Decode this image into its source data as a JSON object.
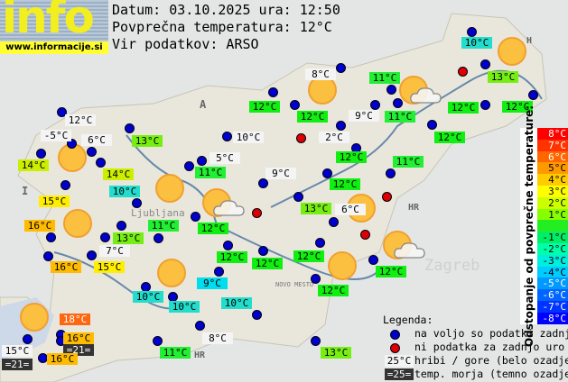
{
  "header": {
    "site_logo_text": "info",
    "site_url": "www.informacije.si",
    "date_line": "Datum: 03.10.2025 ura: 12:50",
    "avg_temp_line": "Povprečna temperatura: 12°C",
    "source_line": "Vir podatkov: ARSO"
  },
  "colors": {
    "station_dot": "#0000cc",
    "no_data_dot": "#dd0000",
    "mountain_bg": "#f4f4f4",
    "sea_bg": "#333333",
    "t9": "#00ddee",
    "t10": "#22ddcc",
    "t11": "#22ee33",
    "t12": "#11ee11",
    "t13": "#77ee11",
    "t14": "#ccee00",
    "t15": "#ffee00",
    "t16": "#ffbb00",
    "t18": "#ff6611"
  },
  "labels": [
    {
      "text": "12°C",
      "type": "mountain"
    },
    {
      "text": "-5°C",
      "type": "mountain"
    },
    {
      "text": "6°C",
      "type": "mountain"
    },
    {
      "text": "14°C",
      "type": "t14"
    },
    {
      "text": "14°C",
      "type": "t14"
    },
    {
      "text": "13°C",
      "type": "t13"
    },
    {
      "text": "15°C",
      "type": "t15"
    },
    {
      "text": "10°C",
      "type": "t10"
    },
    {
      "text": "12°C",
      "type": "t12"
    },
    {
      "text": "10°C",
      "type": "mountain"
    },
    {
      "text": "5°C",
      "type": "mountain"
    },
    {
      "text": "11°C",
      "type": "t11"
    },
    {
      "text": "9°C",
      "type": "mountain"
    },
    {
      "text": "16°C",
      "type": "t16"
    },
    {
      "text": "13°C",
      "type": "t13"
    },
    {
      "text": "11°C",
      "type": "t11"
    },
    {
      "text": "7°C",
      "type": "mountain"
    },
    {
      "text": "16°C",
      "type": "t16"
    },
    {
      "text": "15°C",
      "type": "t15"
    },
    {
      "text": "12°C",
      "type": "t12"
    },
    {
      "text": "12°C",
      "type": "t12"
    },
    {
      "text": "12°C",
      "type": "t12"
    },
    {
      "text": "10°C",
      "type": "t10"
    },
    {
      "text": "10°C",
      "type": "t10"
    },
    {
      "text": "9°C",
      "type": "t9"
    },
    {
      "text": "10°C",
      "type": "t10"
    },
    {
      "text": "8°C",
      "type": "mountain"
    },
    {
      "text": "11°C",
      "type": "t11"
    },
    {
      "text": "18°C",
      "type": "t18"
    },
    {
      "text": "16°C",
      "type": "t16"
    },
    {
      "text": "=21=",
      "type": "sea"
    },
    {
      "text": "15°C",
      "type": "mountain"
    },
    {
      "text": "=21=",
      "type": "sea"
    },
    {
      "text": "16°C",
      "type": "t16"
    },
    {
      "text": "13°C",
      "type": "t13"
    },
    {
      "text": "6°C",
      "type": "mountain"
    },
    {
      "text": "12°C",
      "type": "t12"
    },
    {
      "text": "12°C",
      "type": "t12"
    },
    {
      "text": "12°C",
      "type": "t12"
    },
    {
      "text": "8°C",
      "type": "mountain"
    },
    {
      "text": "12°C",
      "type": "t12"
    },
    {
      "text": "2°C",
      "type": "mountain"
    },
    {
      "text": "12°C",
      "type": "t12"
    },
    {
      "text": "9°C",
      "type": "mountain"
    },
    {
      "text": "11°C",
      "type": "t11"
    },
    {
      "text": "11°C",
      "type": "t11"
    },
    {
      "text": "12°C",
      "type": "t12"
    },
    {
      "text": "12°C",
      "type": "t12"
    },
    {
      "text": "11°C",
      "type": "t11"
    },
    {
      "text": "13°C",
      "type": "t13"
    },
    {
      "text": "10°C",
      "type": "t10"
    },
    {
      "text": "13°C",
      "type": "t13"
    },
    {
      "text": "12°C",
      "type": "t12"
    },
    {
      "text": "12°C",
      "type": "t12"
    }
  ],
  "map_labels": {
    "austria": "A",
    "italy": "I",
    "croatia": "HR",
    "hungary": "H",
    "ljubljana": "Ljubljana",
    "zagreb": "Zagreb",
    "novo_mesto": "NOVO MESTO"
  },
  "scale": {
    "title": "Odstopanje od povprečne temperature:",
    "rows": [
      {
        "text": "8°C",
        "color": "#ff0000"
      },
      {
        "text": "7°C",
        "color": "#ff3300"
      },
      {
        "text": "6°C",
        "color": "#ff6600"
      },
      {
        "text": "5°C",
        "color": "#ff9900"
      },
      {
        "text": "4°C",
        "color": "#ffcc00"
      },
      {
        "text": "3°C",
        "color": "#ffff00"
      },
      {
        "text": "2°C",
        "color": "#ccff00"
      },
      {
        "text": "1°C",
        "color": "#88ff00"
      },
      {
        "text": "",
        "color": "#22ee22"
      },
      {
        "text": "-1°C",
        "color": "#00ee66"
      },
      {
        "text": "-2°C",
        "color": "#00ffaa"
      },
      {
        "text": "-3°C",
        "color": "#00eedd"
      },
      {
        "text": "-4°C",
        "color": "#00ccff"
      },
      {
        "text": "-5°C",
        "color": "#0099ff"
      },
      {
        "text": "-6°C",
        "color": "#0066ff"
      },
      {
        "text": "-7°C",
        "color": "#0033ff"
      },
      {
        "text": "-8°C",
        "color": "#0000ff"
      }
    ]
  },
  "legend": {
    "title": "Legenda:",
    "available": "na voljo so podatki zadnje ure",
    "no_data": "ni podatka za zadnjo uro",
    "mountain_sample": "25°C",
    "mountain_text": "hribi / gore (belo ozadje)",
    "sea_sample": "=25=",
    "sea_text": "temp. morja (temno ozadje)"
  }
}
